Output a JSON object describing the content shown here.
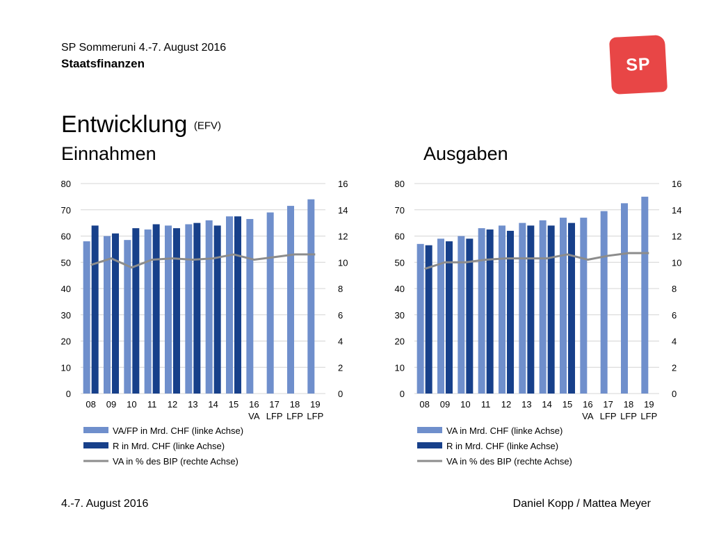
{
  "header": {
    "line1": "SP Sommeruni 4.-7. August 2016",
    "line2": "Staatsfinanzen"
  },
  "logo": {
    "text": "SP",
    "color": "#e84646"
  },
  "title": {
    "main": "Entwicklung",
    "source": "(EFV)"
  },
  "footer": {
    "left": "4.-7. August 2016",
    "right": "Daniel Kopp / Mattea Meyer"
  },
  "colors": {
    "light_bar": "#6f8fcc",
    "dark_bar": "#17408a",
    "line": "#8c8c8c",
    "grid": "#d4d4d4"
  },
  "chart_data": [
    {
      "type": "bar",
      "title": "Einnahmen",
      "categories": [
        "08",
        "09",
        "10",
        "11",
        "12",
        "13",
        "14",
        "15",
        "16",
        "17",
        "18",
        "19"
      ],
      "category_sub": [
        "",
        "",
        "",
        "",
        "",
        "",
        "",
        "",
        "VA",
        "LFP",
        "LFP",
        "LFP"
      ],
      "left_axis": {
        "ylim": [
          0,
          80
        ],
        "ticks": [
          0,
          10,
          20,
          30,
          40,
          50,
          60,
          70,
          80
        ]
      },
      "right_axis": {
        "ylim": [
          0,
          16
        ],
        "ticks": [
          0,
          2,
          4,
          6,
          8,
          10,
          12,
          14,
          16
        ]
      },
      "grid": true,
      "legend_position": "bottom",
      "series": [
        {
          "name": "VA/FP in Mrd. CHF (linke Achse)",
          "kind": "bar",
          "axis": "left",
          "values": [
            58,
            60,
            58.5,
            62.5,
            64,
            64.5,
            66,
            67.5,
            66.5,
            69,
            71.5,
            74
          ]
        },
        {
          "name": "R in Mrd. CHF (linke Achse)",
          "kind": "bar",
          "axis": "left",
          "values": [
            64,
            61,
            63,
            64.5,
            63,
            65,
            64,
            67.5,
            null,
            null,
            null,
            null
          ]
        },
        {
          "name": "VA in % des BIP (rechte Achse)",
          "kind": "line",
          "axis": "right",
          "values": [
            9.8,
            10.3,
            9.6,
            10.2,
            10.3,
            10.2,
            10.3,
            10.6,
            10.2,
            10.4,
            10.6,
            10.6
          ]
        }
      ]
    },
    {
      "type": "bar",
      "title": "Ausgaben",
      "categories": [
        "08",
        "09",
        "10",
        "11",
        "12",
        "13",
        "14",
        "15",
        "16",
        "17",
        "18",
        "19"
      ],
      "category_sub": [
        "",
        "",
        "",
        "",
        "",
        "",
        "",
        "",
        "VA",
        "LFP",
        "LFP",
        "LFP"
      ],
      "left_axis": {
        "ylim": [
          0,
          80
        ],
        "ticks": [
          0,
          10,
          20,
          30,
          40,
          50,
          60,
          70,
          80
        ]
      },
      "right_axis": {
        "ylim": [
          0,
          16
        ],
        "ticks": [
          0,
          2,
          4,
          6,
          8,
          10,
          12,
          14,
          16
        ]
      },
      "grid": true,
      "legend_position": "bottom",
      "series": [
        {
          "name": "VA in Mrd. CHF (linke Achse)",
          "kind": "bar",
          "axis": "left",
          "values": [
            57,
            59,
            60,
            63,
            64,
            65,
            66,
            67,
            67,
            69.5,
            72.5,
            75
          ]
        },
        {
          "name": "R in Mrd. CHF (linke Achse)",
          "kind": "bar",
          "axis": "left",
          "values": [
            56.5,
            58,
            59,
            62.5,
            62,
            64,
            64,
            65,
            null,
            null,
            null,
            null
          ]
        },
        {
          "name": "VA in % des BIP (rechte Achse)",
          "kind": "line",
          "axis": "right",
          "values": [
            9.5,
            10.0,
            10.0,
            10.2,
            10.3,
            10.3,
            10.3,
            10.6,
            10.2,
            10.5,
            10.7,
            10.7
          ]
        }
      ]
    }
  ]
}
